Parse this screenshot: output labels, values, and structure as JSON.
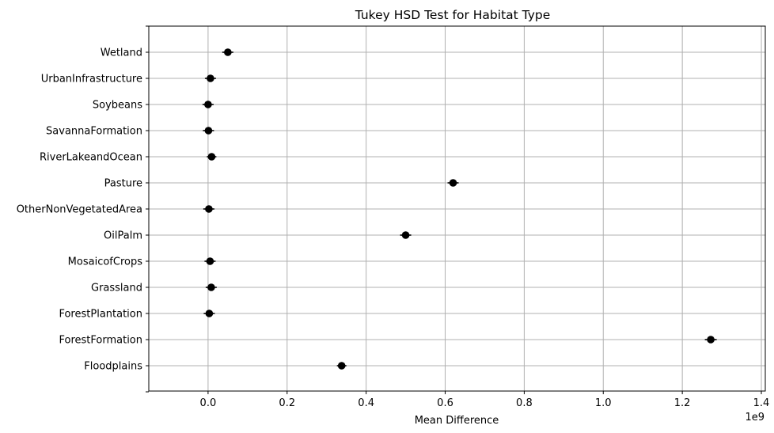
{
  "chart_data": {
    "type": "scatter",
    "title": "Tukey HSD Test for Habitat Type",
    "xlabel": "Mean Difference",
    "ylabel": "",
    "x_offset_label": "1e9",
    "xlim": [
      -150000000,
      1410000000
    ],
    "x_ticks": [
      0,
      200000000,
      400000000,
      600000000,
      800000000,
      1000000000,
      1200000000,
      1400000000
    ],
    "x_tick_labels": [
      "0.0",
      "0.2",
      "0.4",
      "0.6",
      "0.8",
      "1.0",
      "1.2",
      "1.4"
    ],
    "grid": true,
    "categories": [
      "Floodplains",
      "ForestFormation",
      "ForestPlantation",
      "Grassland",
      "MosaicofCrops",
      "OilPalm",
      "OtherNonVegetatedArea",
      "Pasture",
      "RiverLakeandOcean",
      "SavannaFormation",
      "Soybeans",
      "UrbanInfrastructure",
      "Wetland"
    ],
    "points": [
      {
        "category": "Floodplains",
        "x": 338000000,
        "err": 12000000
      },
      {
        "category": "ForestFormation",
        "x": 1272000000,
        "err": 15000000
      },
      {
        "category": "ForestPlantation",
        "x": 3000000,
        "err": 14000000
      },
      {
        "category": "Grassland",
        "x": 8000000,
        "err": 14000000
      },
      {
        "category": "MosaicofCrops",
        "x": 5000000,
        "err": 14000000
      },
      {
        "category": "OilPalm",
        "x": 500000000,
        "err": 14000000
      },
      {
        "category": "OtherNonVegetatedArea",
        "x": 2000000,
        "err": 14000000
      },
      {
        "category": "Pasture",
        "x": 620000000,
        "err": 14000000
      },
      {
        "category": "RiverLakeandOcean",
        "x": 9000000,
        "err": 12000000
      },
      {
        "category": "SavannaFormation",
        "x": 1000000,
        "err": 14000000
      },
      {
        "category": "Soybeans",
        "x": 0,
        "err": 14000000
      },
      {
        "category": "UrbanInfrastructure",
        "x": 6000000,
        "err": 14000000
      },
      {
        "category": "Wetland",
        "x": 50000000,
        "err": 14000000
      }
    ],
    "marker_color": "#000000",
    "grid_color": "#b0b0b0"
  }
}
